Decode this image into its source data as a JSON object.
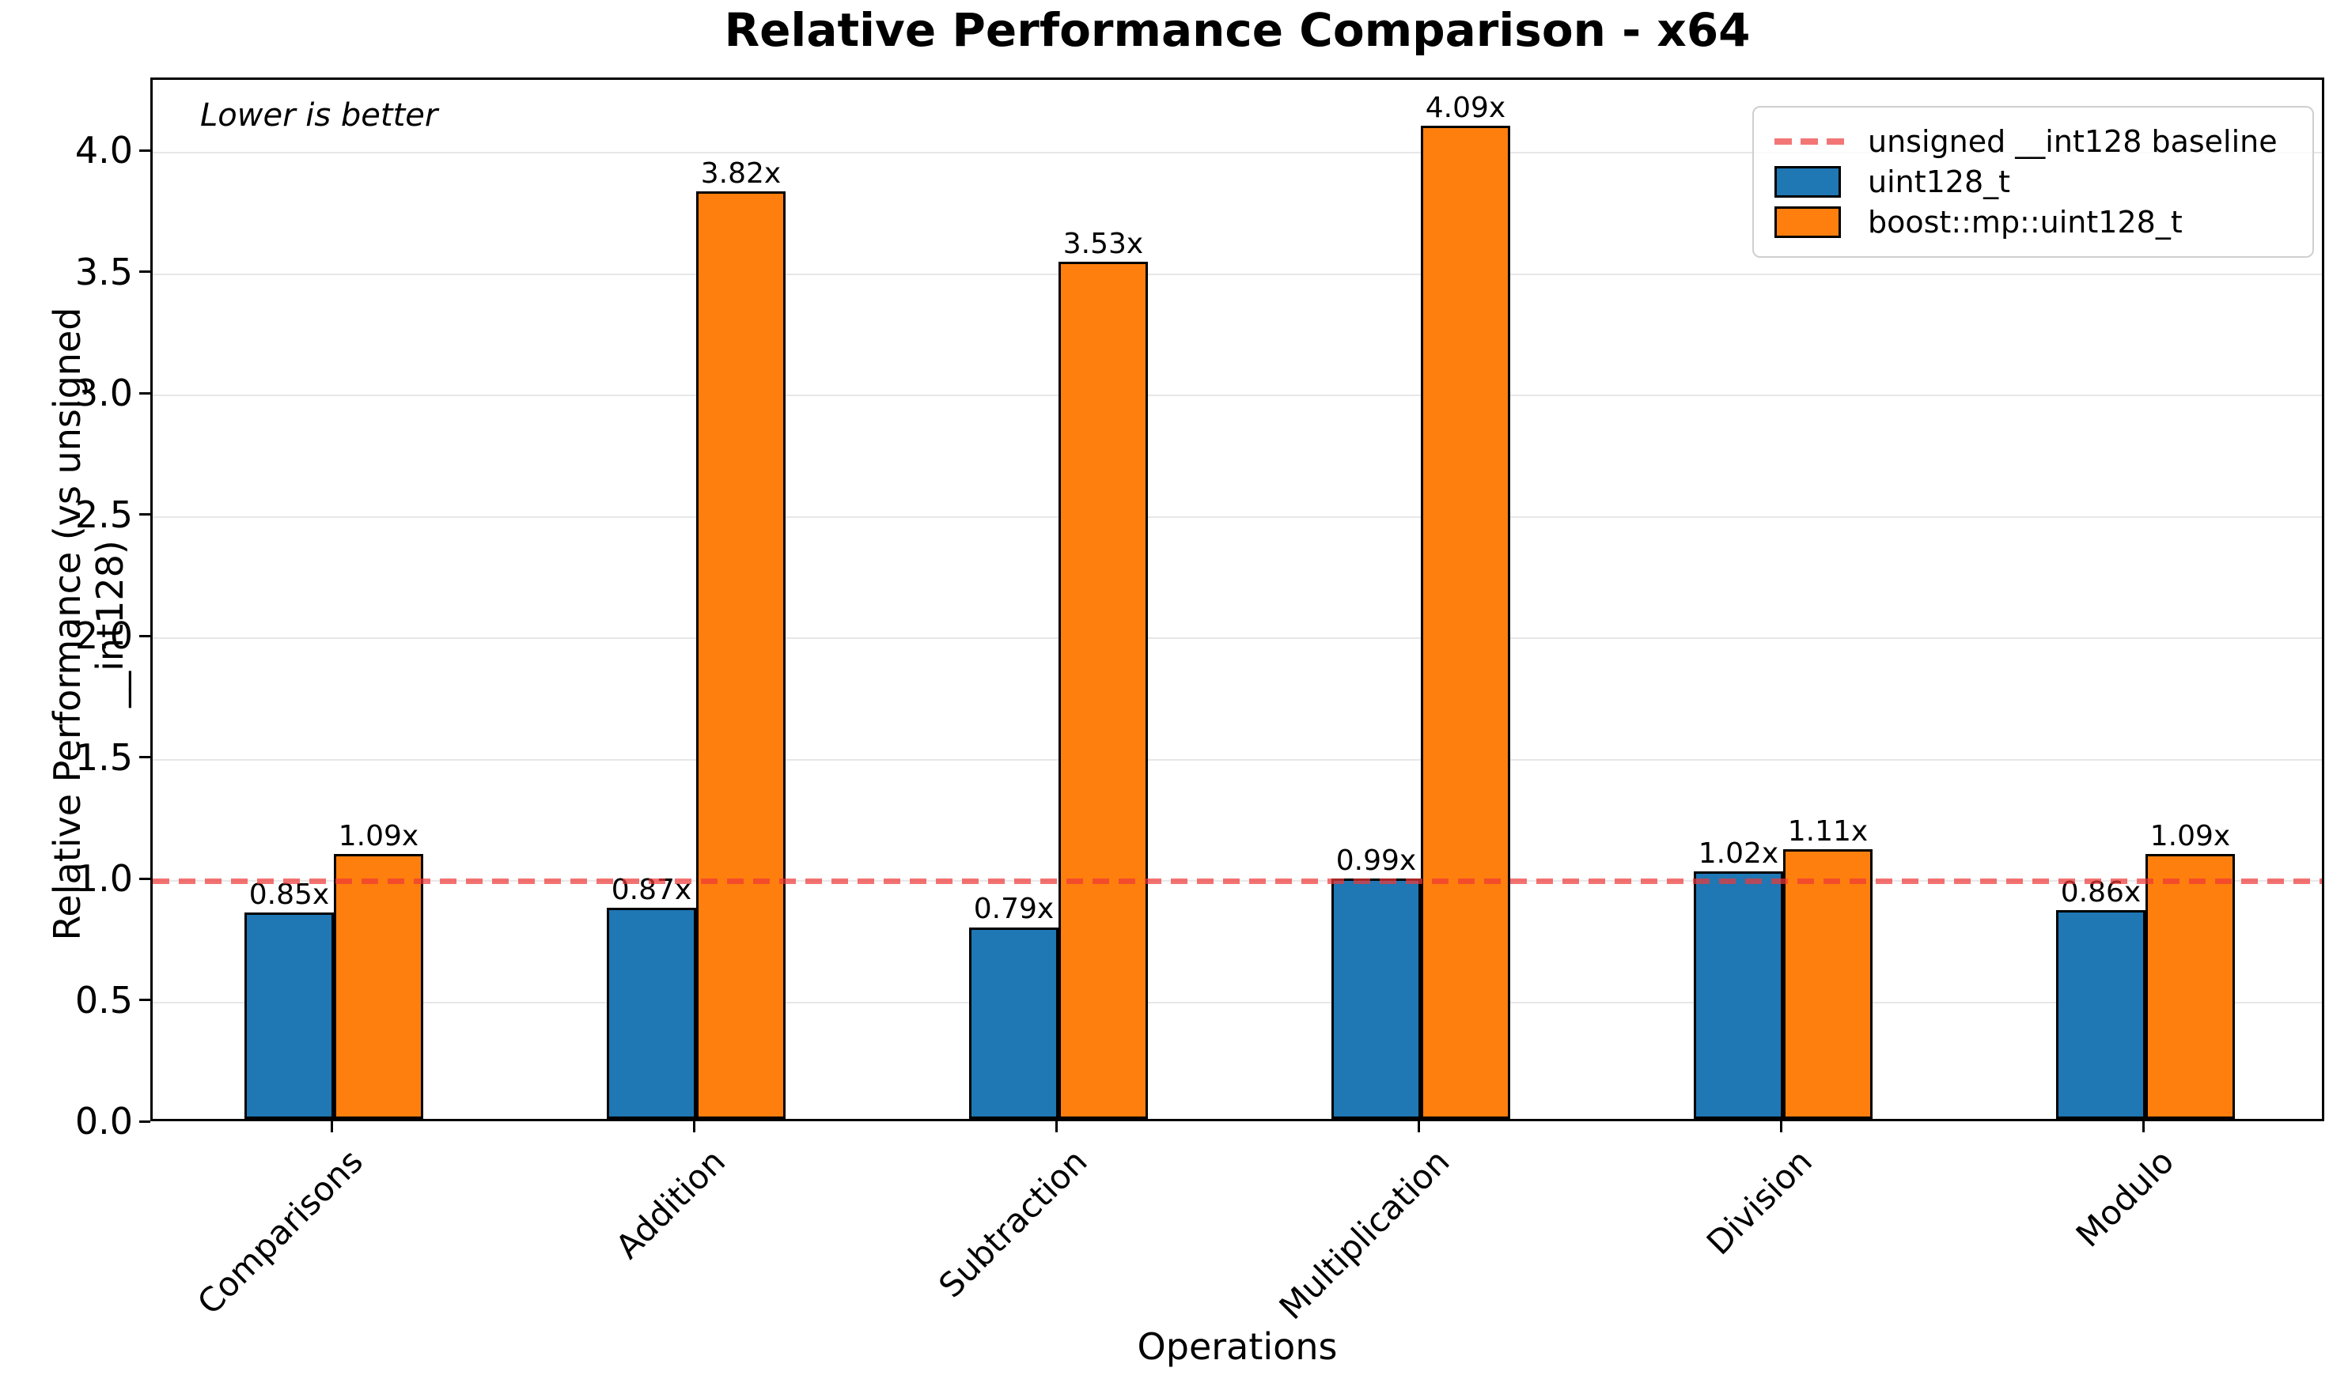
{
  "ui": {
    "title": "Relative Performance Comparison - x64",
    "annotation": "Lower is better",
    "xlabel": "Operations",
    "ylabel": "Relative Performance (vs unsigned __int128)"
  },
  "chart_data": {
    "type": "bar",
    "title": "Relative Performance Comparison - x64",
    "xlabel": "Operations",
    "ylabel": "Relative Performance (vs unsigned __int128)",
    "annotation": "Lower is better",
    "categories": [
      "Comparisons",
      "Addition",
      "Subtraction",
      "Multiplication",
      "Division",
      "Modulo"
    ],
    "series": [
      {
        "name": "uint128_t",
        "color": "#1f77b4",
        "values": [
          0.85,
          0.87,
          0.79,
          0.99,
          1.02,
          0.86
        ],
        "value_labels": [
          "0.85x",
          "0.87x",
          "0.79x",
          "0.99x",
          "1.02x",
          "0.86x"
        ]
      },
      {
        "name": "boost::mp::uint128_t",
        "color": "#ff7f0e",
        "values": [
          1.09,
          3.82,
          3.53,
          4.09,
          1.11,
          1.09
        ],
        "value_labels": [
          "1.09x",
          "3.82x",
          "3.53x",
          "4.09x",
          "1.11x",
          "1.09x"
        ]
      }
    ],
    "baseline": {
      "label": "unsigned __int128 baseline",
      "value": 1.0,
      "color": "#f37676",
      "style": "dashed"
    },
    "yticks": [
      "0.0",
      "0.5",
      "1.0",
      "1.5",
      "2.0",
      "2.5",
      "3.0",
      "3.5",
      "4.0"
    ],
    "ylim": [
      0,
      4.3
    ],
    "grid": "horizontal",
    "legend_position": "upper right",
    "bar_edge_color": "#000000",
    "grid_color": "#e7e7e7"
  }
}
